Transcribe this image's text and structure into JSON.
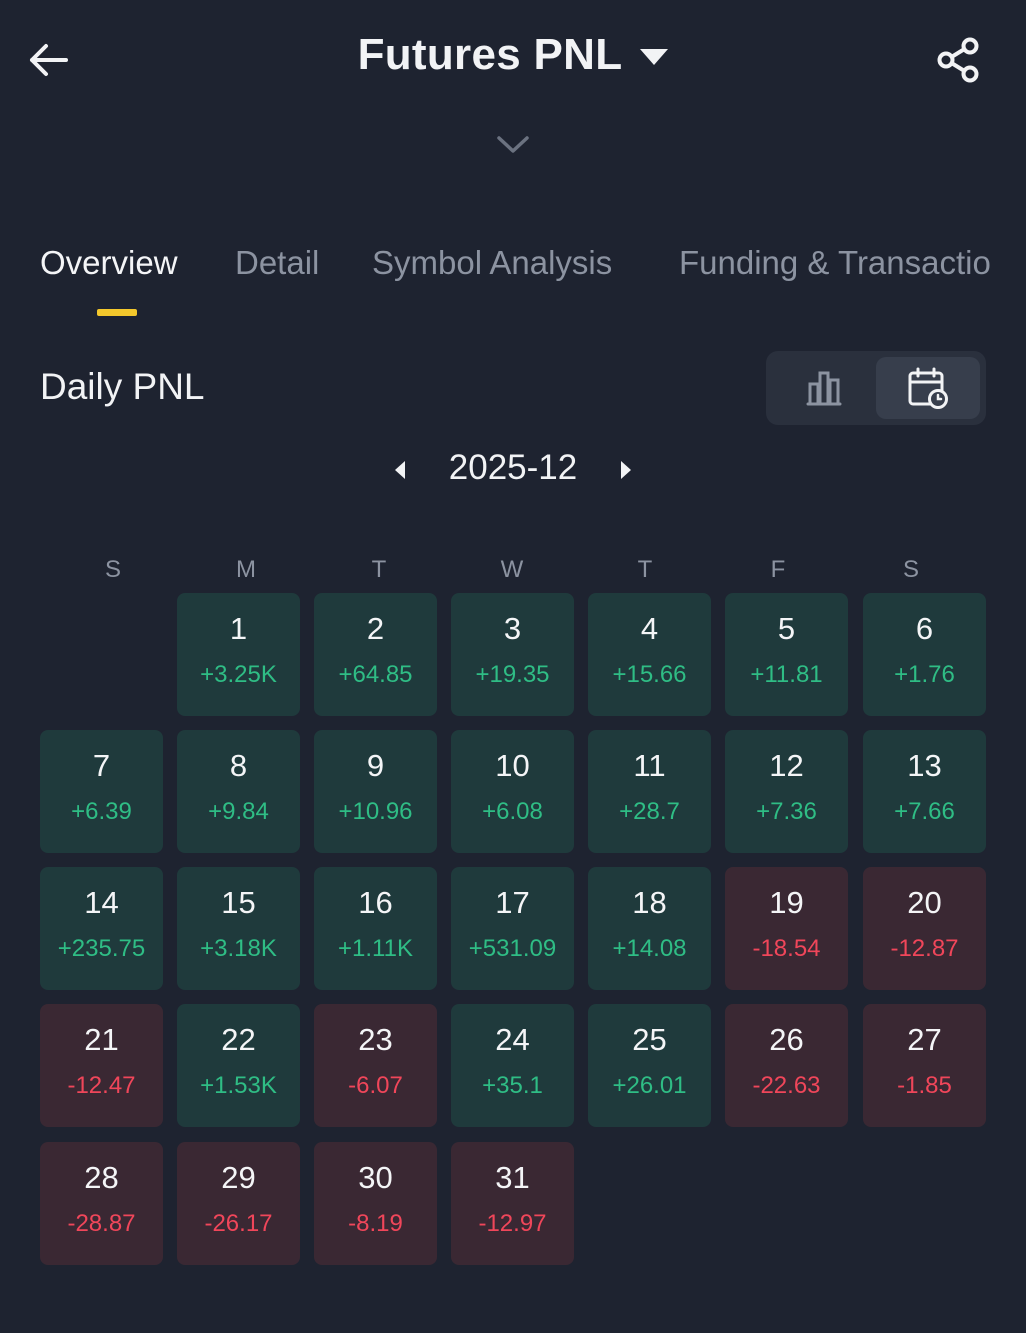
{
  "header": {
    "title": "Futures PNL",
    "back_icon": "arrow-left-icon",
    "share_icon": "share-icon",
    "dropdown_icon": "caret-down-icon",
    "expand_icon": "chevron-down-icon"
  },
  "tabs": [
    {
      "label": "Overview",
      "active": true
    },
    {
      "label": "Detail",
      "active": false
    },
    {
      "label": "Symbol Analysis",
      "active": false
    },
    {
      "label": "Funding & Transactio",
      "active": false
    }
  ],
  "daily": {
    "title": "Daily PNL",
    "views": [
      {
        "icon": "bar-chart-icon",
        "selected": false
      },
      {
        "icon": "calendar-clock-icon",
        "selected": true
      }
    ],
    "month": "2025-12"
  },
  "weekdays": [
    "S",
    "M",
    "T",
    "W",
    "T",
    "F",
    "S"
  ],
  "days": [
    {
      "day": "1",
      "pnl": "+3.25K",
      "sign": "pos"
    },
    {
      "day": "2",
      "pnl": "+64.85",
      "sign": "pos"
    },
    {
      "day": "3",
      "pnl": "+19.35",
      "sign": "pos"
    },
    {
      "day": "4",
      "pnl": "+15.66",
      "sign": "pos"
    },
    {
      "day": "5",
      "pnl": "+11.81",
      "sign": "pos"
    },
    {
      "day": "6",
      "pnl": "+1.76",
      "sign": "pos"
    },
    {
      "day": "7",
      "pnl": "+6.39",
      "sign": "pos"
    },
    {
      "day": "8",
      "pnl": "+9.84",
      "sign": "pos"
    },
    {
      "day": "9",
      "pnl": "+10.96",
      "sign": "pos"
    },
    {
      "day": "10",
      "pnl": "+6.08",
      "sign": "pos"
    },
    {
      "day": "11",
      "pnl": "+28.7",
      "sign": "pos"
    },
    {
      "day": "12",
      "pnl": "+7.36",
      "sign": "pos"
    },
    {
      "day": "13",
      "pnl": "+7.66",
      "sign": "pos"
    },
    {
      "day": "14",
      "pnl": "+235.75",
      "sign": "pos"
    },
    {
      "day": "15",
      "pnl": "+3.18K",
      "sign": "pos"
    },
    {
      "day": "16",
      "pnl": "+1.11K",
      "sign": "pos"
    },
    {
      "day": "17",
      "pnl": "+531.09",
      "sign": "pos"
    },
    {
      "day": "18",
      "pnl": "+14.08",
      "sign": "pos"
    },
    {
      "day": "19",
      "pnl": "-18.54",
      "sign": "neg"
    },
    {
      "day": "20",
      "pnl": "-12.87",
      "sign": "neg"
    },
    {
      "day": "21",
      "pnl": "-12.47",
      "sign": "neg"
    },
    {
      "day": "22",
      "pnl": "+1.53K",
      "sign": "pos"
    },
    {
      "day": "23",
      "pnl": "-6.07",
      "sign": "neg"
    },
    {
      "day": "24",
      "pnl": "+35.1",
      "sign": "pos"
    },
    {
      "day": "25",
      "pnl": "+26.01",
      "sign": "pos"
    },
    {
      "day": "26",
      "pnl": "-22.63",
      "sign": "neg"
    },
    {
      "day": "27",
      "pnl": "-1.85",
      "sign": "neg"
    },
    {
      "day": "28",
      "pnl": "-28.87",
      "sign": "neg"
    },
    {
      "day": "29",
      "pnl": "-26.17",
      "sign": "neg"
    },
    {
      "day": "30",
      "pnl": "-8.19",
      "sign": "neg"
    },
    {
      "day": "31",
      "pnl": "-12.97",
      "sign": "neg"
    }
  ],
  "colors": {
    "background": "#1e2330",
    "positive": "#2fbd85",
    "negative": "#f0465a",
    "accent": "#f4c82c"
  }
}
